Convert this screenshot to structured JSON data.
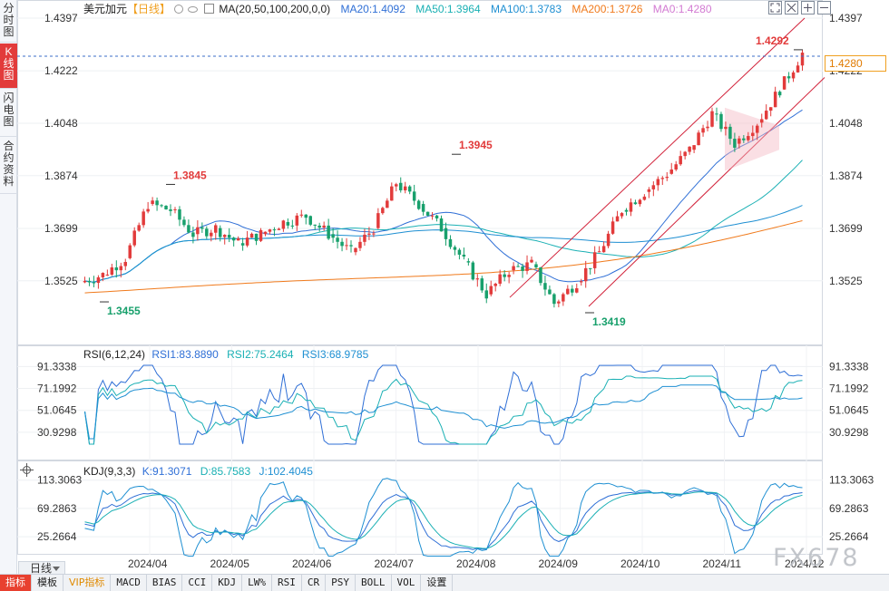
{
  "left_tabs": [
    {
      "label": "分时图",
      "active": false
    },
    {
      "label": "K线图",
      "active": true
    },
    {
      "label": "闪电图",
      "active": false
    },
    {
      "label": "合约资料",
      "active": false
    }
  ],
  "header": {
    "symbol": "美元加元",
    "period": "【日线】",
    "ma_params": "MA(20,50,100,200,0,0)",
    "ma20": "MA20:1.4092",
    "ma50": "MA50:1.3964",
    "ma100": "MA100:1.3783",
    "ma200": "MA200:1.3726",
    "ma0": "MA0:1.4280"
  },
  "rsi_header": {
    "params": "RSI(6,12,24)",
    "rsi1": "RSI1:83.8890",
    "rsi2": "RSI2:75.2464",
    "rsi3": "RSI3:68.9785"
  },
  "kdj_header": {
    "params": "KDJ(9,3,3)",
    "k": "K:91.3071",
    "d": "D:85.7583",
    "j": "J:102.4045"
  },
  "price_axis": [
    "1.4397",
    "1.4222",
    "1.4048",
    "1.3874",
    "1.3699",
    "1.3525"
  ],
  "rsi_axis": [
    "91.3338",
    "71.1992",
    "51.0645",
    "30.9298"
  ],
  "kdj_axis": [
    "113.3063",
    "69.2863",
    "25.2664"
  ],
  "x_axis": [
    "2024/04",
    "2024/05",
    "2024/06",
    "2024/07",
    "2024/08",
    "2024/09",
    "2024/10",
    "2024/11",
    "2024/12"
  ],
  "annotations": {
    "high_1": "1.3845",
    "high_2": "1.3945",
    "high_3": "1.4292",
    "low_1": "1.3455",
    "low_2": "1.3419"
  },
  "current_price": "1.4280",
  "period_selector": "日线",
  "toolbar": [
    {
      "label": "指标",
      "active": true,
      "cjk": true
    },
    {
      "label": "模板",
      "active": false,
      "cjk": true
    },
    {
      "label": "VIP指标",
      "active": false,
      "cjk": true,
      "vip": true
    },
    {
      "label": "MACD",
      "active": false
    },
    {
      "label": "BIAS",
      "active": false
    },
    {
      "label": "CCI",
      "active": false
    },
    {
      "label": "KDJ",
      "active": false
    },
    {
      "label": "LW%",
      "active": false
    },
    {
      "label": "RSI",
      "active": false
    },
    {
      "label": "CR",
      "active": false
    },
    {
      "label": "PSY",
      "active": false
    },
    {
      "label": "BOLL",
      "active": false
    },
    {
      "label": "VOL",
      "active": false
    },
    {
      "label": "设置",
      "active": false,
      "cjk": true
    }
  ],
  "watermark": "FX678",
  "chart_data": {
    "type": "candlestick",
    "title": "美元加元 日线",
    "price_range": [
      1.34,
      1.441
    ],
    "ohlc_weekly_approx": [
      {
        "x": "2024/03 w4",
        "o": 1.352,
        "h": 1.356,
        "l": 1.3455,
        "c": 1.3545
      },
      {
        "x": "2024/04 w1",
        "o": 1.3545,
        "h": 1.364,
        "l": 1.35,
        "c": 1.36
      },
      {
        "x": "2024/04 w2",
        "o": 1.36,
        "h": 1.38,
        "l": 1.358,
        "c": 1.378
      },
      {
        "x": "2024/04 w3",
        "o": 1.378,
        "h": 1.3845,
        "l": 1.374,
        "c": 1.376
      },
      {
        "x": "2024/04 w4",
        "o": 1.376,
        "h": 1.379,
        "l": 1.363,
        "c": 1.368
      },
      {
        "x": "2024/05 w1",
        "o": 1.368,
        "h": 1.376,
        "l": 1.364,
        "c": 1.37
      },
      {
        "x": "2024/05 w2",
        "o": 1.37,
        "h": 1.372,
        "l": 1.363,
        "c": 1.365
      },
      {
        "x": "2024/05 w3",
        "o": 1.365,
        "h": 1.37,
        "l": 1.359,
        "c": 1.368
      },
      {
        "x": "2024/06 w1",
        "o": 1.368,
        "h": 1.375,
        "l": 1.364,
        "c": 1.372
      },
      {
        "x": "2024/06 w2",
        "o": 1.372,
        "h": 1.379,
        "l": 1.369,
        "c": 1.374
      },
      {
        "x": "2024/06 w3",
        "o": 1.374,
        "h": 1.375,
        "l": 1.366,
        "c": 1.368
      },
      {
        "x": "2024/07 w1",
        "o": 1.368,
        "h": 1.37,
        "l": 1.359,
        "c": 1.362
      },
      {
        "x": "2024/07 w2",
        "o": 1.362,
        "h": 1.372,
        "l": 1.361,
        "c": 1.37
      },
      {
        "x": "2024/07 w3",
        "o": 1.37,
        "h": 1.388,
        "l": 1.369,
        "c": 1.385
      },
      {
        "x": "2024/08 w1",
        "o": 1.385,
        "h": 1.3945,
        "l": 1.376,
        "c": 1.378
      },
      {
        "x": "2024/08 w2",
        "o": 1.378,
        "h": 1.38,
        "l": 1.368,
        "c": 1.37
      },
      {
        "x": "2024/08 w3",
        "o": 1.37,
        "h": 1.372,
        "l": 1.355,
        "c": 1.359
      },
      {
        "x": "2024/08 w4",
        "o": 1.359,
        "h": 1.36,
        "l": 1.344,
        "c": 1.348
      },
      {
        "x": "2024/09 w1",
        "o": 1.348,
        "h": 1.358,
        "l": 1.346,
        "c": 1.356
      },
      {
        "x": "2024/09 w2",
        "o": 1.356,
        "h": 1.362,
        "l": 1.352,
        "c": 1.358
      },
      {
        "x": "2024/09 w3",
        "o": 1.358,
        "h": 1.36,
        "l": 1.3419,
        "c": 1.345
      },
      {
        "x": "2024/09 w4",
        "o": 1.345,
        "h": 1.354,
        "l": 1.343,
        "c": 1.352
      },
      {
        "x": "2024/10 w1",
        "o": 1.352,
        "h": 1.364,
        "l": 1.35,
        "c": 1.362
      },
      {
        "x": "2024/10 w2",
        "o": 1.362,
        "h": 1.378,
        "l": 1.36,
        "c": 1.376
      },
      {
        "x": "2024/10 w3",
        "o": 1.376,
        "h": 1.384,
        "l": 1.374,
        "c": 1.382
      },
      {
        "x": "2024/10 w4",
        "o": 1.382,
        "h": 1.39,
        "l": 1.379,
        "c": 1.388
      },
      {
        "x": "2024/11 w1",
        "o": 1.388,
        "h": 1.4,
        "l": 1.384,
        "c": 1.396
      },
      {
        "x": "2024/11 w2",
        "o": 1.396,
        "h": 1.41,
        "l": 1.392,
        "c": 1.408
      },
      {
        "x": "2024/11 w3",
        "o": 1.408,
        "h": 1.411,
        "l": 1.393,
        "c": 1.398
      },
      {
        "x": "2024/11 w4",
        "o": 1.398,
        "h": 1.41,
        "l": 1.396,
        "c": 1.405
      },
      {
        "x": "2024/12 w1",
        "o": 1.405,
        "h": 1.418,
        "l": 1.403,
        "c": 1.416
      },
      {
        "x": "2024/12 w2",
        "o": 1.416,
        "h": 1.4292,
        "l": 1.414,
        "c": 1.428
      }
    ],
    "ma_lines": [
      {
        "name": "MA20",
        "color": "#2f6fd6",
        "last": 1.4092
      },
      {
        "name": "MA50",
        "color": "#1ab0b4",
        "last": 1.3964
      },
      {
        "name": "MA100",
        "color": "#1e8fd2",
        "last": 1.3783
      },
      {
        "name": "MA200",
        "color": "#f07a1c",
        "last": 1.3726
      }
    ],
    "rsi": {
      "rsi1": 83.889,
      "rsi2": 75.2464,
      "rsi3": 68.9785
    },
    "kdj": {
      "k": 91.3071,
      "d": 85.7583,
      "j": 102.4045
    },
    "colors": {
      "up": "#e23b3b",
      "down": "#18a06c",
      "channel": "#d2223a",
      "dash": "#3b6cc9"
    }
  }
}
